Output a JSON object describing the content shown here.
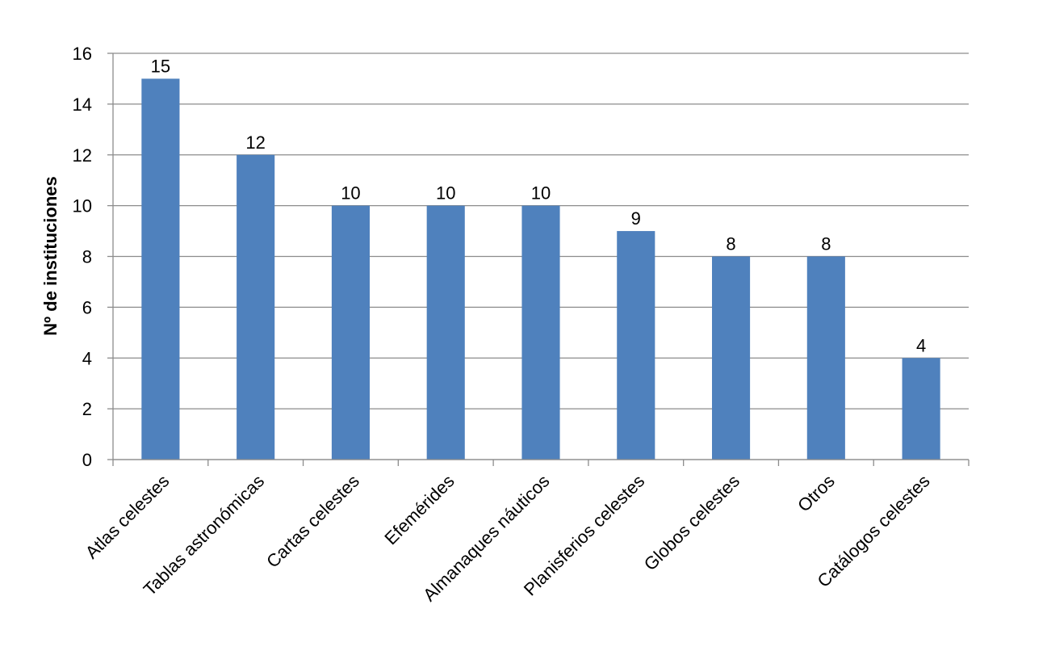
{
  "chart_data": {
    "type": "bar",
    "y_label": "Nº de instituciones",
    "categories": [
      "Atlas celestes",
      "Tablas astronómicas",
      "Cartas celestes",
      "Efemérides",
      "Almanaques náuticos",
      "Planisferios celestes",
      "Globos celestes",
      "Otros",
      "Catálogos celestes"
    ],
    "values": [
      15,
      12,
      10,
      10,
      10,
      9,
      8,
      8,
      4
    ],
    "color": "#4f81bd",
    "ylim": [
      0,
      16
    ],
    "yticks": [
      0,
      2,
      4,
      6,
      8,
      10,
      12,
      14,
      16
    ],
    "grid": true,
    "data_labels": true
  }
}
